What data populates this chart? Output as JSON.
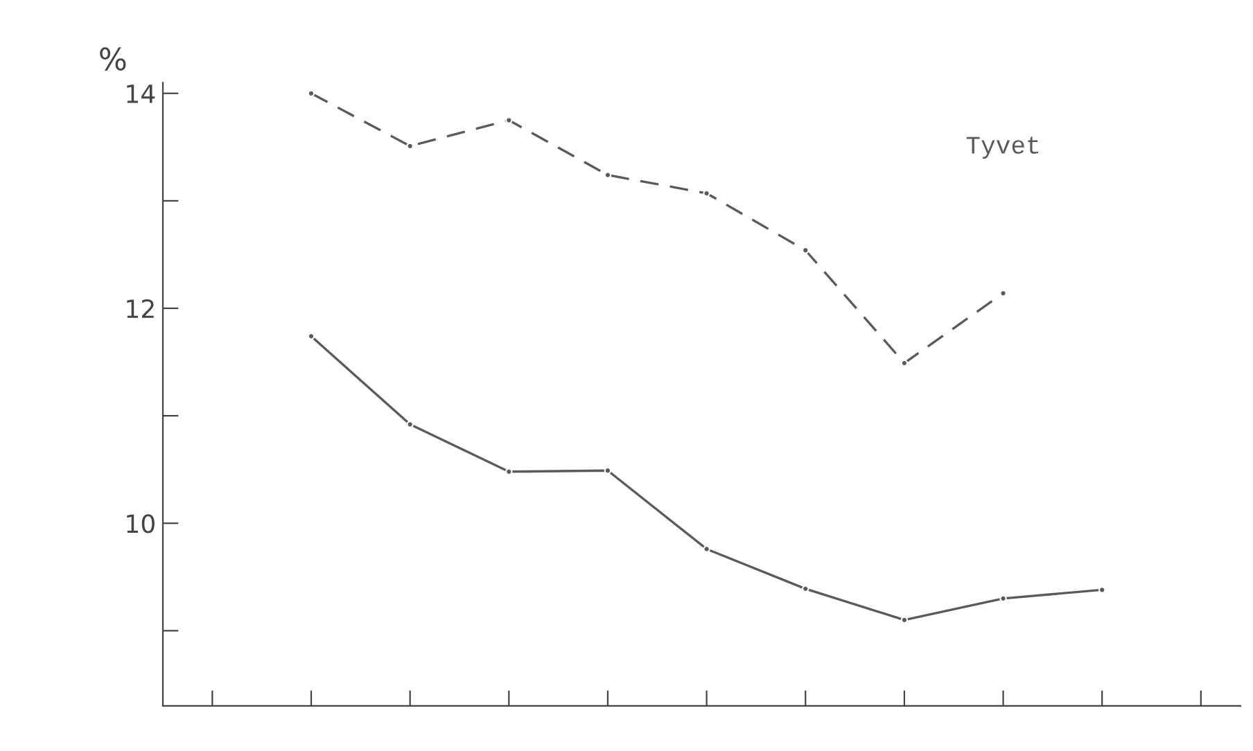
{
  "chart_data": {
    "type": "line",
    "ylabel": "%",
    "categories": [
      null,
      null,
      null,
      null,
      null,
      null,
      null,
      null,
      null,
      null,
      null
    ],
    "series": [
      {
        "name": "Tyvet",
        "color": "#5a5a5a",
        "line_style": "dashed",
        "values": [
          null,
          14.0,
          13.51,
          13.75,
          13.24,
          13.07,
          12.54,
          11.49,
          12.14,
          null,
          null
        ]
      },
      {
        "color": "#5a5a5a",
        "line_style": "solid",
        "values": [
          null,
          11.74,
          10.92,
          10.48,
          10.49,
          9.76,
          9.39,
          9.1,
          9.3,
          9.38,
          null
        ]
      }
    ],
    "ylim": [
      8.3,
      14.1
    ],
    "yticks": [
      {
        "value": 9,
        "label": null
      },
      10,
      {
        "value": 11,
        "label": null
      },
      12,
      {
        "value": 13,
        "label": null
      },
      14
    ],
    "marker": "circle",
    "grid": false,
    "legend": false
  }
}
